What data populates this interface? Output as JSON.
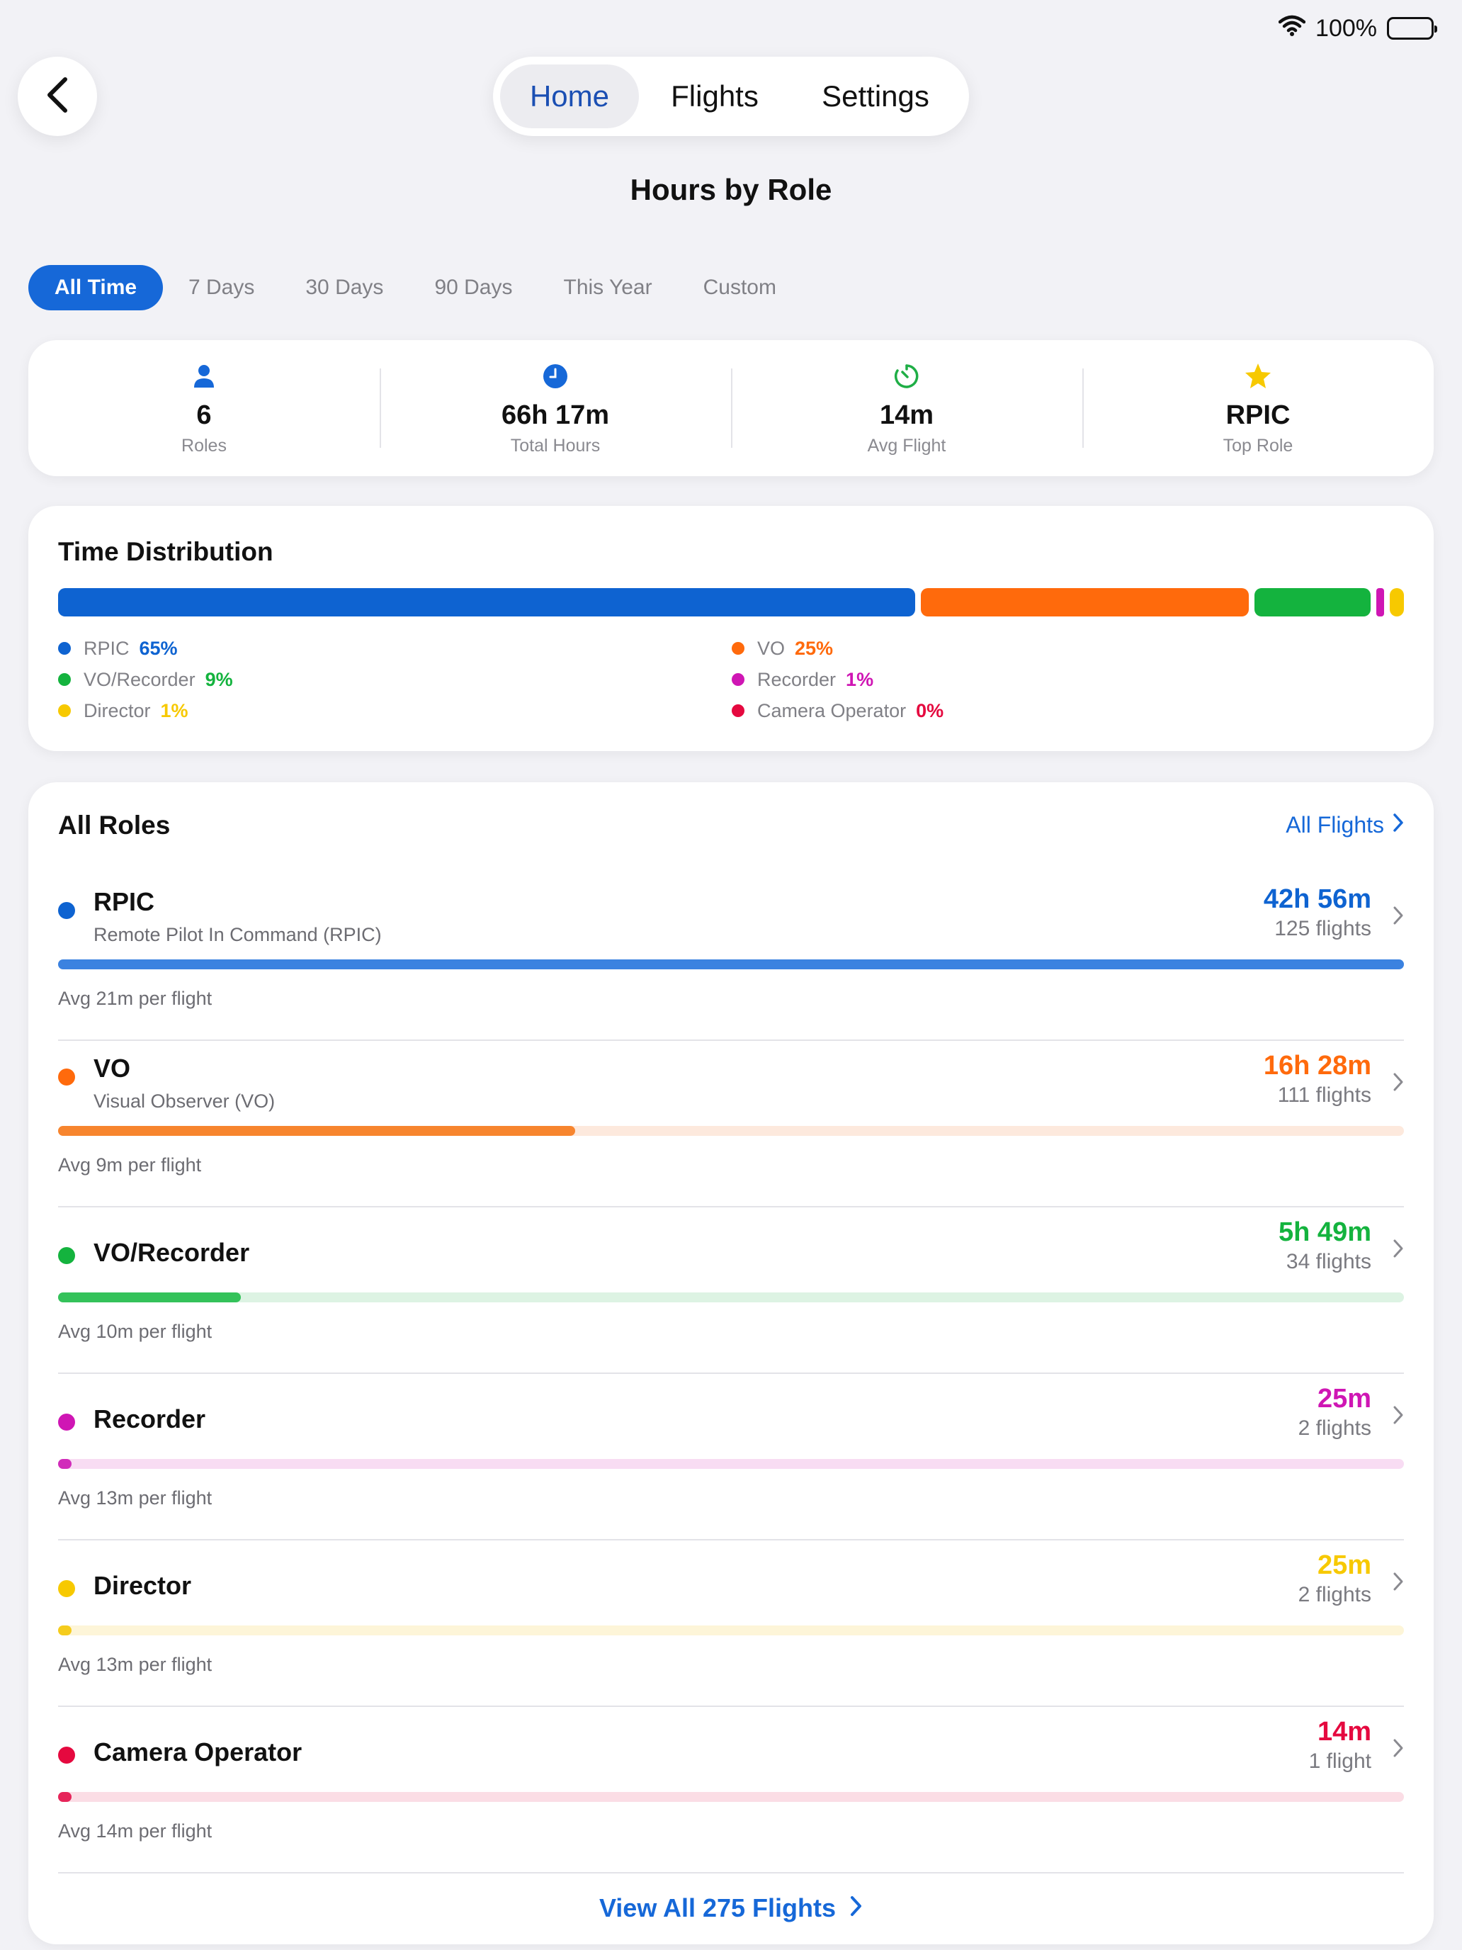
{
  "status": {
    "battery": "100%"
  },
  "nav": {
    "tabs": [
      "Home",
      "Flights",
      "Settings"
    ],
    "active": "Home"
  },
  "page_title": "Hours by Role",
  "filters": [
    "All Time",
    "7 Days",
    "30 Days",
    "90 Days",
    "This Year",
    "Custom"
  ],
  "stats": [
    {
      "icon": "person-icon",
      "value": "6",
      "label": "Roles"
    },
    {
      "icon": "clock-icon",
      "value": "66h 17m",
      "label": "Total Hours"
    },
    {
      "icon": "timer-icon",
      "value": "14m",
      "label": "Avg Flight"
    },
    {
      "icon": "star-icon",
      "value": "RPIC",
      "label": "Top Role"
    }
  ],
  "distribution": {
    "title": "Time Distribution",
    "segments": [
      {
        "name": "RPIC",
        "pct_label": "65%",
        "fraction": 0.648,
        "color": "#0e63d1"
      },
      {
        "name": "VO",
        "pct_label": "25%",
        "fraction": 0.248,
        "color": "#ff6a0c"
      },
      {
        "name": "VO/Recorder",
        "pct_label": "9%",
        "fraction": 0.088,
        "color": "#14b33e"
      },
      {
        "name": "Recorder",
        "pct_label": "1%",
        "fraction": 0.006,
        "color": "#cf16b4"
      },
      {
        "name": "Director",
        "pct_label": "1%",
        "fraction": 0.006,
        "color": "#f7c900"
      },
      {
        "name": "Camera Operator",
        "pct_label": "0%",
        "fraction": 0.0,
        "color": "#e5093f"
      }
    ]
  },
  "roles": {
    "title": "All Roles",
    "all_flights_label": "All Flights",
    "items": [
      {
        "name": "RPIC",
        "subtitle": "Remote Pilot In Command (RPIC)",
        "hours": "42h 56m",
        "flights": "125 flights",
        "avg": "Avg 21m per flight",
        "fraction": 1.0,
        "color": "#0e63d1",
        "bar_color": "#3b82e0",
        "track_color": "#dbe8fb"
      },
      {
        "name": "VO",
        "subtitle": "Visual Observer (VO)",
        "hours": "16h 28m",
        "flights": "111 flights",
        "avg": "Avg 9m per flight",
        "fraction": 0.384,
        "color": "#ff6a0c",
        "bar_color": "#f7852e",
        "track_color": "#fde9dd"
      },
      {
        "name": "VO/Recorder",
        "subtitle": "",
        "hours": "5h 49m",
        "flights": "34 flights",
        "avg": "Avg 10m per flight",
        "fraction": 0.136,
        "color": "#14b33e",
        "bar_color": "#34c25a",
        "track_color": "#ddf3e3"
      },
      {
        "name": "Recorder",
        "subtitle": "",
        "hours": "25m",
        "flights": "2 flights",
        "avg": "Avg 13m per flight",
        "fraction": 0.01,
        "color": "#cf16b4",
        "bar_color": "#d12cba",
        "track_color": "#f8dcf3"
      },
      {
        "name": "Director",
        "subtitle": "",
        "hours": "25m",
        "flights": "2 flights",
        "avg": "Avg 13m per flight",
        "fraction": 0.01,
        "color": "#f7c900",
        "bar_color": "#f5cc1d",
        "track_color": "#fdf5d8"
      },
      {
        "name": "Camera Operator",
        "subtitle": "",
        "hours": "14m",
        "flights": "1 flight",
        "avg": "Avg 14m per flight",
        "fraction": 0.006,
        "color": "#e5093f",
        "bar_color": "#e6255a",
        "track_color": "#fbdde5"
      }
    ],
    "view_all_label": "View All 275 Flights"
  }
}
